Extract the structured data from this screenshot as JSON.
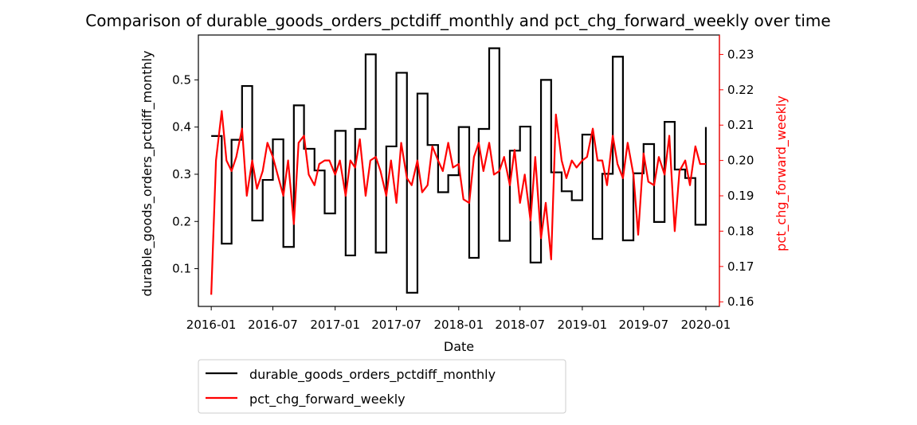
{
  "chart_data": {
    "type": "line",
    "title": "Comparison of durable_goods_orders_pctdiff_monthly and pct_chg_forward_weekly over time",
    "xlabel": "Date",
    "ylabel_left": "durable_goods_orders_pctdiff_monthly",
    "ylabel_right": "pct_chg_forward_weekly",
    "xlim": [
      "2015-11-24",
      "2020-02-10"
    ],
    "ylim_left": [
      0.02,
      0.595
    ],
    "ylim_right": [
      0.1587,
      0.2355
    ],
    "x_ticks": [
      "2016-01",
      "2016-07",
      "2017-01",
      "2017-07",
      "2018-01",
      "2018-07",
      "2019-01",
      "2019-07",
      "2020-01"
    ],
    "y_ticks_left": [
      "0.1",
      "0.2",
      "0.3",
      "0.4",
      "0.5"
    ],
    "y_ticks_right": [
      "0.16",
      "0.17",
      "0.18",
      "0.19",
      "0.20",
      "0.21",
      "0.22",
      "0.23"
    ],
    "legend_position": "below plot, left",
    "grid": false,
    "series": [
      {
        "name": "durable_goods_orders_pctdiff_monthly",
        "axis": "left",
        "color": "#000000",
        "style": "step",
        "x": [
          "2016-01-01",
          "2016-02-01",
          "2016-03-01",
          "2016-04-01",
          "2016-05-01",
          "2016-06-01",
          "2016-07-01",
          "2016-08-01",
          "2016-09-01",
          "2016-10-01",
          "2016-11-01",
          "2016-12-01",
          "2017-01-01",
          "2017-02-01",
          "2017-03-01",
          "2017-04-01",
          "2017-05-01",
          "2017-06-01",
          "2017-07-01",
          "2017-08-01",
          "2017-09-01",
          "2017-10-01",
          "2017-11-01",
          "2017-12-01",
          "2018-01-01",
          "2018-02-01",
          "2018-03-01",
          "2018-04-01",
          "2018-05-01",
          "2018-06-01",
          "2018-07-01",
          "2018-08-01",
          "2018-09-01",
          "2018-10-01",
          "2018-11-01",
          "2018-12-01",
          "2019-01-01",
          "2019-02-01",
          "2019-03-01",
          "2019-04-01",
          "2019-05-01",
          "2019-06-01",
          "2019-07-01",
          "2019-08-01",
          "2019-09-01",
          "2019-10-01",
          "2019-11-01",
          "2019-12-01",
          "2020-01-01"
        ],
        "values": [
          0.381,
          0.153,
          0.373,
          0.487,
          0.202,
          0.288,
          0.374,
          0.146,
          0.446,
          0.354,
          0.308,
          0.217,
          0.392,
          0.128,
          0.396,
          0.554,
          0.134,
          0.359,
          0.515,
          0.049,
          0.471,
          0.362,
          0.262,
          0.298,
          0.4,
          0.123,
          0.396,
          0.567,
          0.159,
          0.35,
          0.401,
          0.113,
          0.5,
          0.304,
          0.264,
          0.245,
          0.384,
          0.163,
          0.301,
          0.549,
          0.16,
          0.302,
          0.364,
          0.199,
          0.411,
          0.31,
          0.292,
          0.193,
          0.4
        ]
      },
      {
        "name": "pct_chg_forward_weekly",
        "axis": "right",
        "color": "#ff0000",
        "style": "line",
        "x": [
          "2016-01-01",
          "2016-01-15",
          "2016-02-01",
          "2016-02-15",
          "2016-03-01",
          "2016-03-15",
          "2016-04-01",
          "2016-04-15",
          "2016-05-01",
          "2016-05-15",
          "2016-06-01",
          "2016-06-15",
          "2016-07-01",
          "2016-07-15",
          "2016-08-01",
          "2016-08-15",
          "2016-09-01",
          "2016-09-15",
          "2016-10-01",
          "2016-10-15",
          "2016-11-01",
          "2016-11-15",
          "2016-12-01",
          "2016-12-15",
          "2017-01-01",
          "2017-01-15",
          "2017-02-01",
          "2017-02-15",
          "2017-03-01",
          "2017-03-15",
          "2017-04-01",
          "2017-04-15",
          "2017-05-01",
          "2017-05-15",
          "2017-06-01",
          "2017-06-15",
          "2017-07-01",
          "2017-07-15",
          "2017-08-01",
          "2017-08-15",
          "2017-09-01",
          "2017-09-15",
          "2017-10-01",
          "2017-10-15",
          "2017-11-01",
          "2017-11-15",
          "2017-12-01",
          "2017-12-15",
          "2018-01-01",
          "2018-01-15",
          "2018-02-01",
          "2018-02-15",
          "2018-03-01",
          "2018-03-15",
          "2018-04-01",
          "2018-04-15",
          "2018-05-01",
          "2018-05-15",
          "2018-06-01",
          "2018-06-15",
          "2018-07-01",
          "2018-07-15",
          "2018-08-01",
          "2018-08-15",
          "2018-09-01",
          "2018-09-15",
          "2018-10-01",
          "2018-10-15",
          "2018-11-01",
          "2018-11-15",
          "2018-12-01",
          "2018-12-15",
          "2019-01-01",
          "2019-01-15",
          "2019-02-01",
          "2019-02-15",
          "2019-03-01",
          "2019-03-15",
          "2019-04-01",
          "2019-04-15",
          "2019-05-01",
          "2019-05-15",
          "2019-06-01",
          "2019-06-15",
          "2019-07-01",
          "2019-07-15",
          "2019-08-01",
          "2019-08-15",
          "2019-09-01",
          "2019-09-15",
          "2019-10-01",
          "2019-10-15",
          "2019-11-01",
          "2019-11-15",
          "2019-12-01",
          "2019-12-15",
          "2020-01-01"
        ],
        "values": [
          0.162,
          0.2,
          0.214,
          0.2,
          0.197,
          0.201,
          0.209,
          0.19,
          0.2,
          0.192,
          0.197,
          0.205,
          0.201,
          0.196,
          0.19,
          0.2,
          0.182,
          0.205,
          0.207,
          0.196,
          0.193,
          0.199,
          0.2,
          0.2,
          0.196,
          0.2,
          0.19,
          0.2,
          0.198,
          0.206,
          0.19,
          0.2,
          0.201,
          0.197,
          0.19,
          0.2,
          0.188,
          0.205,
          0.195,
          0.193,
          0.2,
          0.191,
          0.193,
          0.204,
          0.2,
          0.197,
          0.205,
          0.198,
          0.199,
          0.189,
          0.188,
          0.201,
          0.205,
          0.197,
          0.205,
          0.196,
          0.197,
          0.201,
          0.193,
          0.203,
          0.188,
          0.196,
          0.183,
          0.201,
          0.178,
          0.188,
          0.172,
          0.213,
          0.2,
          0.195,
          0.2,
          0.198,
          0.2,
          0.201,
          0.209,
          0.2,
          0.2,
          0.193,
          0.207,
          0.199,
          0.195,
          0.205,
          0.196,
          0.179,
          0.202,
          0.194,
          0.193,
          0.201,
          0.196,
          0.207,
          0.18,
          0.197,
          0.2,
          0.193,
          0.204,
          0.199,
          0.199
        ]
      }
    ]
  }
}
